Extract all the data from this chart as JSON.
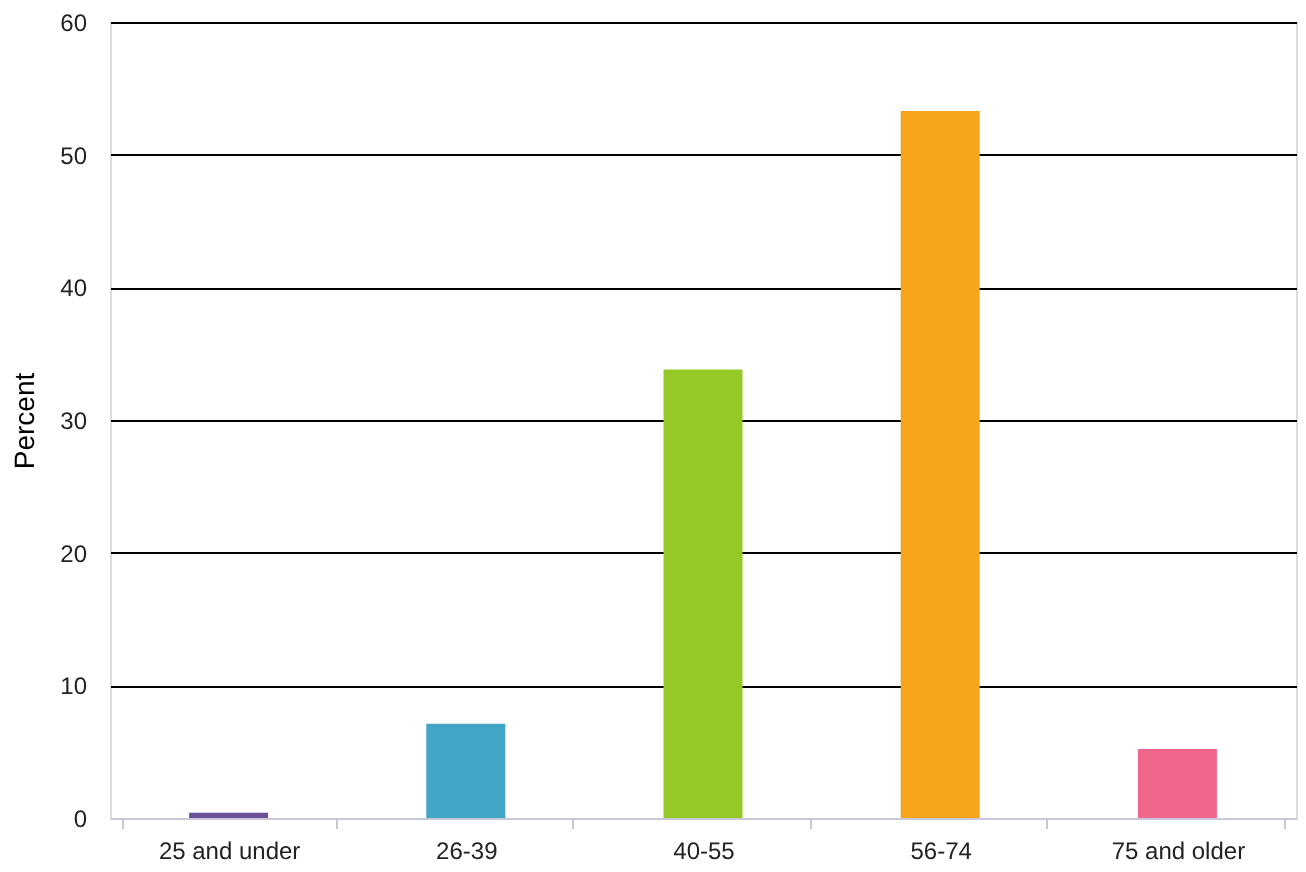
{
  "chart_data": {
    "type": "bar",
    "ylabel": "Percent",
    "categories": [
      "25 and under",
      "26-39",
      "40-55",
      "56-74",
      "75 and older"
    ],
    "values": [
      0.4,
      7.1,
      33.8,
      53.3,
      5.2
    ],
    "colors": [
      "#6b4f96",
      "#41a5c6",
      "#95c927",
      "#f6a51a",
      "#f0668a"
    ],
    "ylim": [
      0,
      60
    ],
    "yticks": [
      0,
      10,
      20,
      30,
      40,
      50,
      60
    ],
    "grid": "y"
  }
}
